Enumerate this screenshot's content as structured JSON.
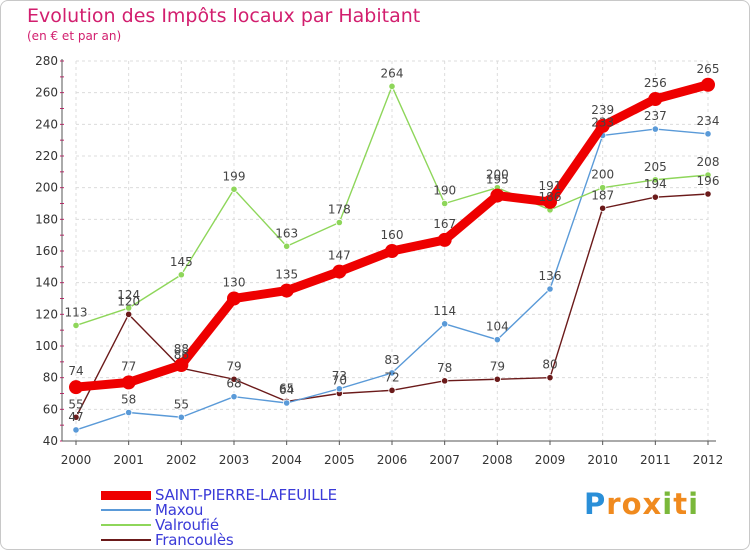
{
  "title": "Evolution des Impôts locaux par Habitant",
  "subtitle": "(en € et par an)",
  "logo": {
    "letters": [
      "P",
      "r",
      "o",
      "x",
      "i",
      "t",
      "i"
    ],
    "colors": [
      "#2a8fd8",
      "#f08a1e",
      "#f08a1e",
      "#f08a1e",
      "#7ab83a",
      "#f08a1e",
      "#7ab83a"
    ]
  },
  "chart_data": {
    "type": "line",
    "title": "Evolution des Impôts locaux par Habitant",
    "subtitle": "(en € et par an)",
    "xlabel": "",
    "ylabel": "",
    "x": [
      "2000",
      "2001",
      "2002",
      "2003",
      "2004",
      "2005",
      "2006",
      "2007",
      "2008",
      "2009",
      "2010",
      "2011",
      "2012"
    ],
    "ylim": [
      40,
      280
    ],
    "yticks": [
      40,
      60,
      80,
      100,
      120,
      140,
      160,
      180,
      200,
      220,
      240,
      260,
      280
    ],
    "grid": true,
    "legend_position": "bottom-left",
    "series": [
      {
        "name": "Francoulès",
        "color": "#6b1a1a",
        "values": [
          55,
          120,
          86,
          79,
          65,
          70,
          72,
          78,
          79,
          80,
          187,
          194,
          196
        ]
      },
      {
        "name": "Maxou",
        "color": "#5a9ad8",
        "values": [
          47,
          58,
          55,
          68,
          64,
          73,
          83,
          114,
          104,
          136,
          233,
          237,
          234
        ]
      },
      {
        "name": "Valroufié",
        "color": "#8ed65a",
        "values": [
          113,
          124,
          145,
          199,
          163,
          178,
          264,
          190,
          200,
          186,
          200,
          205,
          208
        ]
      },
      {
        "name": "SAINT-PIERRE-LAFEUILLE",
        "color": "#ee0000",
        "values": [
          74,
          77,
          88,
          130,
          135,
          147,
          160,
          167,
          195,
          191,
          239,
          256,
          265
        ]
      }
    ],
    "data_labels": [
      [
        "55",
        "120",
        "86",
        "79",
        "65",
        "70",
        "72",
        "78",
        "79",
        "80",
        "187",
        "194",
        "196"
      ],
      [
        "47",
        "58",
        "55",
        "68",
        "64",
        "73",
        "83",
        "114",
        "104",
        "136",
        "233",
        "237",
        "234"
      ],
      [
        "113",
        "124",
        "145",
        "199",
        "163",
        "178",
        "264",
        "190",
        "200",
        "186",
        "200",
        "205",
        "208"
      ],
      [
        "74",
        "77",
        "88",
        "130",
        "135",
        "147",
        "160",
        "167",
        "195",
        "191",
        "239",
        "256",
        "265"
      ]
    ],
    "legend": [
      "SAINT-PIERRE-LAFEUILLE",
      "Maxou",
      "Valroufié",
      "Francoulès"
    ]
  }
}
